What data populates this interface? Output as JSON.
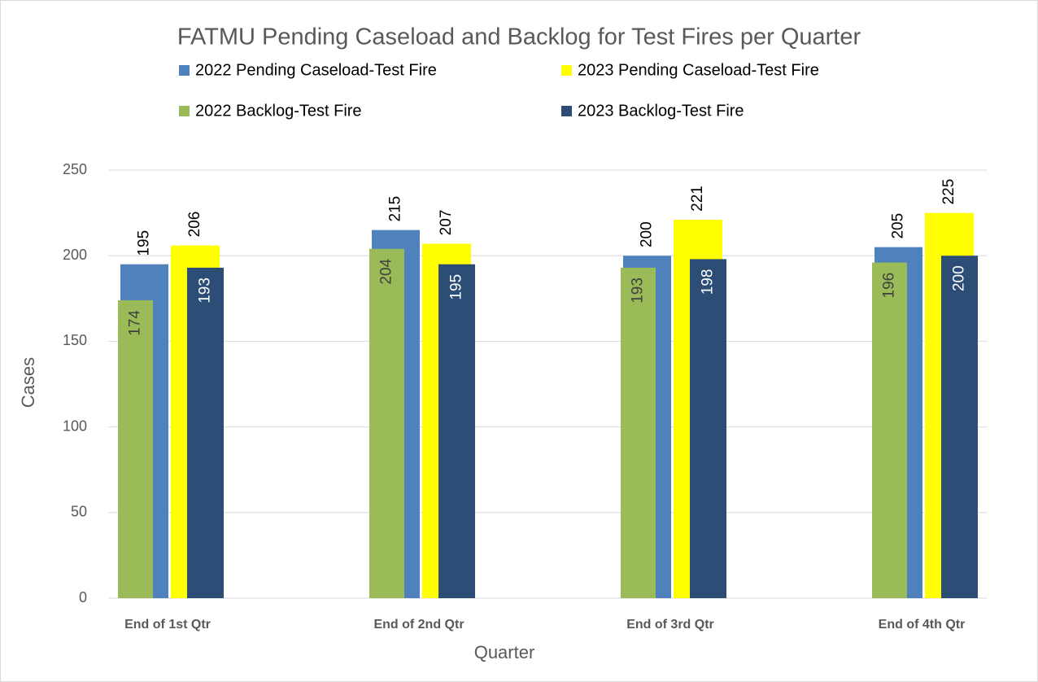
{
  "chart_data": {
    "type": "bar",
    "title": "FATMU Pending Caseload and Backlog for Test Fires per Quarter",
    "x_label": "Quarter",
    "y_label": "Cases",
    "categories": [
      "End of 1st Qtr",
      "End of 2nd Qtr",
      "End of 3rd Qtr",
      "End of 4th Qtr"
    ],
    "series": [
      {
        "name": "2022 Pending Caseload-Test Fire",
        "color": "#4f81bd",
        "values": [
          195,
          215,
          200,
          205
        ]
      },
      {
        "name": "2023 Pending Caseload-Test Fire",
        "color": "#ffff00",
        "values": [
          206,
          207,
          221,
          225
        ]
      },
      {
        "name": "2022 Backlog-Test Fire",
        "color": "#9bbb59",
        "values": [
          174,
          204,
          193,
          196
        ]
      },
      {
        "name": "2023 Backlog-Test Fire",
        "color": "#2c4d75",
        "values": [
          193,
          195,
          198,
          200
        ]
      }
    ],
    "ylim": [
      0,
      250
    ],
    "yticks": [
      0,
      50,
      100,
      150,
      200,
      250
    ],
    "grid": true
  }
}
